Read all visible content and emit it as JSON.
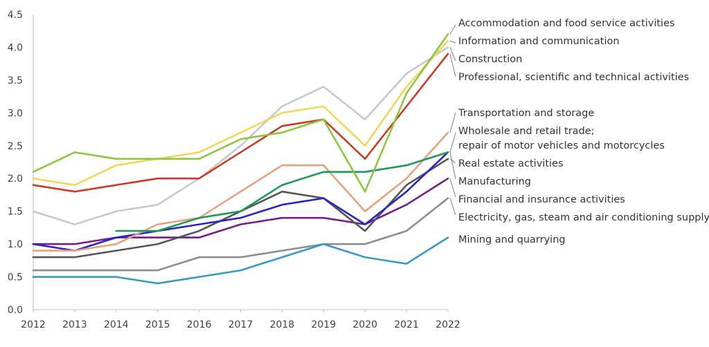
{
  "chart_data": {
    "type": "line",
    "title": "",
    "xlabel": "",
    "ylabel": "",
    "x": [
      2012,
      2013,
      2014,
      2015,
      2016,
      2017,
      2018,
      2019,
      2020,
      2021,
      2022
    ],
    "x_ticks": [
      "2012",
      "2013",
      "2014",
      "2015",
      "2016",
      "2017",
      "2018",
      "2019",
      "2020",
      "2021",
      "2022"
    ],
    "ylim": [
      0,
      4.5
    ],
    "y_ticks": [
      "0.0",
      "0.5",
      "1.0",
      "1.5",
      "2.0",
      "2.5",
      "3.0",
      "3.5",
      "4.0",
      "4.5"
    ],
    "grid": false,
    "legend_placement": "right",
    "series": [
      {
        "name": "Accommodation and food service activities",
        "color": "#8cc63f",
        "values": [
          2.1,
          2.4,
          2.3,
          2.3,
          2.3,
          2.6,
          2.7,
          2.9,
          1.8,
          3.3,
          4.2
        ]
      },
      {
        "name": "Information and communication",
        "color": "#f5d45c",
        "values": [
          2.0,
          1.9,
          2.2,
          2.3,
          2.4,
          2.7,
          3.0,
          3.1,
          2.5,
          3.4,
          4.1
        ]
      },
      {
        "name": "Construction",
        "color": "#c8c8c8",
        "values": [
          1.5,
          1.3,
          1.5,
          1.6,
          2.0,
          2.5,
          3.1,
          3.4,
          2.9,
          3.6,
          4.0
        ]
      },
      {
        "name": "Professional, scientific and technical activities",
        "color": "#cc3a22",
        "values": [
          1.9,
          1.8,
          1.9,
          2.0,
          2.0,
          2.4,
          2.8,
          2.9,
          2.3,
          3.1,
          3.9
        ]
      },
      {
        "name": "Transportation and storage",
        "color": "#e8a07c",
        "values": [
          0.9,
          0.9,
          1.0,
          1.3,
          1.4,
          1.8,
          2.2,
          2.2,
          1.5,
          2.0,
          2.7
        ]
      },
      {
        "name": "Wholesale and retail trade; repair of motor vehicles and motorcycles",
        "color": "#1e9a55",
        "values": [
          null,
          null,
          1.2,
          1.2,
          1.4,
          1.5,
          1.9,
          2.1,
          2.1,
          2.2,
          2.4
        ]
      },
      {
        "name": "Real estate activities",
        "color": "#555555",
        "values": [
          0.8,
          0.8,
          0.9,
          1.0,
          1.2,
          1.5,
          1.8,
          1.7,
          1.2,
          1.9,
          2.3
        ]
      },
      {
        "name": "Manufacturing",
        "color": "#2626c8",
        "values": [
          1.0,
          0.9,
          1.1,
          1.2,
          1.3,
          1.4,
          1.6,
          1.7,
          1.3,
          1.8,
          2.4
        ]
      },
      {
        "name": "Financial and insurance activities",
        "color": "#7a1a8c",
        "values": [
          1.0,
          1.0,
          1.1,
          1.1,
          1.1,
          1.3,
          1.4,
          1.4,
          1.3,
          1.6,
          2.0
        ]
      },
      {
        "name": "Electricity, gas, steam and air conditioning supply",
        "color": "#8c8c8c",
        "values": [
          0.6,
          0.6,
          0.6,
          0.6,
          0.8,
          0.8,
          0.9,
          1.0,
          1.0,
          1.2,
          1.7
        ]
      },
      {
        "name": "Mining and quarrying",
        "color": "#3399cc",
        "values": [
          0.5,
          0.5,
          0.5,
          0.4,
          0.5,
          0.6,
          0.8,
          1.0,
          0.8,
          0.7,
          1.1
        ]
      }
    ],
    "legend_lines": [
      {
        "text": "Accommodation and food service activities",
        "series": 0
      },
      {
        "text": "Information and communication",
        "series": 1
      },
      {
        "text": "Construction",
        "series": 2
      },
      {
        "text": "Professional, scientific and technical activities",
        "series": 3
      },
      {
        "text": "Transportation and storage",
        "series": 4
      },
      {
        "text": "Wholesale and retail trade;",
        "series": 5
      },
      {
        "text": "repair of motor vehicles and motorcycles",
        "series": 5
      },
      {
        "text": "Real estate activities",
        "series": 6
      },
      {
        "text": "Manufacturing",
        "series": 7
      },
      {
        "text": "Financial and insurance activities",
        "series": 8
      },
      {
        "text": "Electricity, gas, steam and air conditioning supply",
        "series": 9
      },
      {
        "text": "Mining and quarrying",
        "series": 10
      }
    ]
  }
}
